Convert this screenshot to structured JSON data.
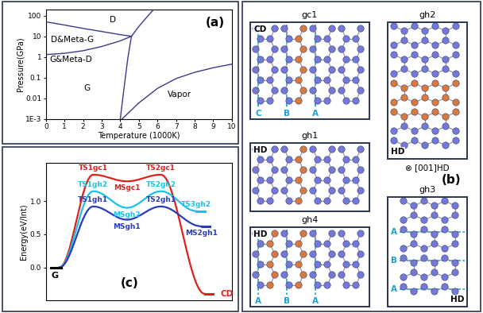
{
  "chart_data": [
    {
      "type": "line",
      "panel_label": "(a)",
      "x_label": "Temperature (1000K)",
      "y_label": "Pressure(GPa)",
      "log": "y",
      "color": "#3a3a8c",
      "xlim": [
        0,
        10
      ],
      "ylim": [
        0.001,
        200
      ],
      "xticks": [
        0,
        1,
        2,
        3,
        4,
        5,
        6,
        7,
        8,
        9,
        10
      ],
      "yticks": [
        {
          "value": 0.001,
          "label": "1E-3"
        },
        0.01,
        0.1,
        1,
        10,
        100
      ],
      "series": [
        {
          "x": [
            0,
            1,
            2,
            3,
            4,
            4.6
          ],
          "values": [
            50,
            35,
            24,
            17,
            12,
            10
          ]
        },
        {
          "x": [
            0,
            1,
            2,
            3,
            4,
            4.6
          ],
          "values": [
            1.3,
            1.5,
            2.0,
            3.2,
            6,
            10
          ]
        },
        {
          "x": [
            4.0,
            4.2,
            4.4,
            4.6
          ],
          "values": [
            0.001,
            0.03,
            0.8,
            10
          ]
        },
        {
          "x": [
            4.6,
            5.0,
            5.5,
            5.8
          ],
          "values": [
            10,
            30,
            100,
            200
          ]
        },
        {
          "x": [
            4.1,
            5,
            6,
            7,
            8,
            9,
            10
          ],
          "values": [
            0.001,
            0.006,
            0.03,
            0.09,
            0.18,
            0.3,
            0.45
          ]
        }
      ],
      "annotations": [
        {
          "text": "D",
          "x": 3.6,
          "y": 60
        },
        {
          "text": "D&Meta-G",
          "x": 0.25,
          "y": 7
        },
        {
          "text": "G&Meta-D",
          "x": 0.2,
          "y": 0.75
        },
        {
          "text": "G",
          "x": 2.2,
          "y": 0.03
        },
        {
          "text": "Vapor",
          "x": 7.2,
          "y": 0.015
        }
      ]
    },
    {
      "type": "line",
      "panel_label": "(c)",
      "y_label": "Energy(eV/Int)",
      "tick_labels": "y",
      "start_label": "G",
      "xlim": [
        -0.4,
        5.1
      ],
      "ylim": [
        -0.5,
        1.58
      ],
      "yticks": [
        {
          "value": 0,
          "label": "0.0"
        },
        {
          "value": 0.5,
          "label": "0.5"
        },
        {
          "value": 1,
          "label": "1.0"
        }
      ],
      "series": [
        {
          "color": "#e0201b",
          "x": [
            0,
            1,
            2,
            3,
            4.3
          ],
          "values": [
            0,
            1.4,
            1.3,
            1.4,
            -0.4
          ],
          "point_labels": [
            null,
            "TS1gc1",
            "MSgc1",
            "TS2gc1",
            "CD"
          ]
        },
        {
          "color": "#19c3e6",
          "x": [
            0,
            1,
            2,
            3,
            4.05
          ],
          "values": [
            0,
            1.15,
            0.9,
            1.15,
            0.85
          ],
          "point_labels": [
            null,
            "TS1gh2",
            "MSgh2",
            "TS2gh2",
            "TS3gh2"
          ]
        },
        {
          "color": "#2b3bbf",
          "x": [
            0,
            1,
            2,
            3,
            4.2
          ],
          "values": [
            0,
            0.92,
            0.72,
            0.92,
            0.62
          ],
          "point_labels": [
            null,
            "TS1gh1",
            "MSgh1",
            "TS2gh1",
            "MS2gh1"
          ]
        }
      ]
    }
  ],
  "diagram": {
    "panel_label": "(b)",
    "structures": [
      {
        "name": "gc1",
        "phase": "CD",
        "stacking": [
          "C",
          "B",
          "A"
        ]
      },
      {
        "name": "gh1",
        "phase": "HD"
      },
      {
        "name": "gh4",
        "phase": "HD",
        "stacking": [
          "A",
          "B",
          "A"
        ]
      },
      {
        "name": "gh2",
        "phase": "HD",
        "axis_symbol": "⊗",
        "axis_label": "[001]HD"
      },
      {
        "name": "gh3",
        "phase": "HD",
        "stacking": [
          "A",
          "B",
          "A"
        ]
      }
    ]
  }
}
